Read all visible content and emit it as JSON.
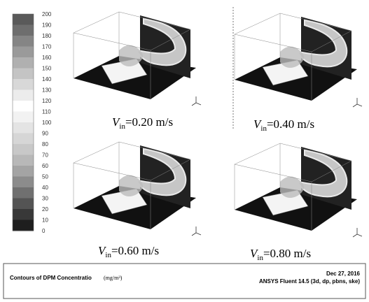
{
  "colorbar": {
    "labels": [
      "200",
      "190",
      "180",
      "170",
      "160",
      "150",
      "140",
      "130",
      "120",
      "110",
      "100",
      "90",
      "80",
      "70",
      "60",
      "50",
      "40",
      "30",
      "20",
      "10",
      "0"
    ],
    "colors": [
      "#5a5a5a",
      "#6e6e6e",
      "#858585",
      "#9a9a9a",
      "#b0b0b0",
      "#c4c4c4",
      "#d8d8d8",
      "#ececec",
      "#ffffff",
      "#f2f2f2",
      "#e4e4e4",
      "#d6d6d6",
      "#c8c8c8",
      "#b8b8b8",
      "#a4a4a4",
      "#8c8c8c",
      "#707070",
      "#545454",
      "#383838",
      "#1e1e1e"
    ]
  },
  "panels": [
    {
      "symbol": "V",
      "subscript": "in",
      "rest": "=0.20 m/s"
    },
    {
      "symbol": "V",
      "subscript": "in",
      "rest": "=0.40 m/s"
    },
    {
      "symbol": "V",
      "subscript": "in",
      "rest": "=0.60 m/s"
    },
    {
      "symbol": "V",
      "subscript": "in",
      "rest": "=0.80 m/s"
    }
  ],
  "footer": {
    "title": "Contours of DPM Concentratio",
    "unit": "(mg/m³)",
    "date": "Dec 27, 2016",
    "software": "ANSYS Fluent 14.5 (3d, dp, pbns, ske)"
  }
}
